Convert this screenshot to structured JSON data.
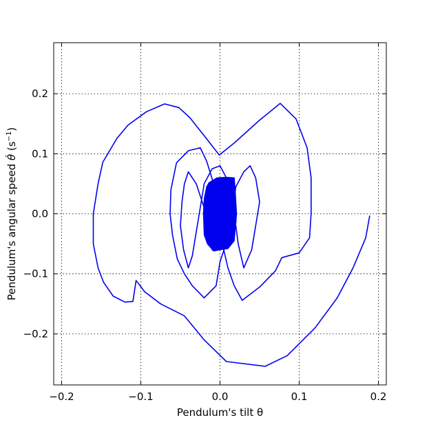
{
  "chart_data": {
    "type": "line",
    "title": "",
    "xlabel": "Pendulum's tilt θ",
    "ylabel_prefix": "Pendulum's angular speed ",
    "ylabel_symbol": "θ̇",
    "ylabel_unit_open": " (s",
    "ylabel_unit_exp": "−1",
    "ylabel_unit_close": ")",
    "xlim": [
      -0.21,
      0.21
    ],
    "ylim": [
      -0.285,
      0.285
    ],
    "grid": true,
    "line_color": "#0000ee",
    "x_ticks": [
      {
        "value": -0.2,
        "label": "−0.2"
      },
      {
        "value": -0.1,
        "label": "−0.1"
      },
      {
        "value": 0.0,
        "label": "0.0"
      },
      {
        "value": 0.1,
        "label": "0.1"
      },
      {
        "value": 0.2,
        "label": "0.2"
      }
    ],
    "y_ticks": [
      {
        "value": 0.2,
        "label": "0.2"
      },
      {
        "value": 0.1,
        "label": "0.1"
      },
      {
        "value": 0.0,
        "label": "0.0"
      },
      {
        "value": -0.1,
        "label": "−0.1"
      },
      {
        "value": -0.2,
        "label": "−0.2"
      }
    ],
    "series": [
      {
        "points": [
          [
            0.189,
            -0.003
          ],
          [
            0.184,
            -0.04
          ],
          [
            0.168,
            -0.09
          ],
          [
            0.148,
            -0.14
          ],
          [
            0.12,
            -0.19
          ],
          [
            0.085,
            -0.236
          ],
          [
            0.057,
            -0.254
          ],
          [
            0.008,
            -0.246
          ],
          [
            -0.02,
            -0.21
          ],
          [
            -0.045,
            -0.17
          ],
          [
            -0.075,
            -0.15
          ],
          [
            -0.095,
            -0.13
          ],
          [
            -0.106,
            -0.111
          ],
          [
            -0.11,
            -0.146
          ],
          [
            -0.12,
            -0.147
          ],
          [
            -0.135,
            -0.137
          ],
          [
            -0.147,
            -0.114
          ],
          [
            -0.154,
            -0.09
          ],
          [
            -0.16,
            -0.05
          ],
          [
            -0.16,
            -0.0
          ],
          [
            -0.154,
            0.05
          ],
          [
            -0.148,
            0.086
          ],
          [
            -0.13,
            0.126
          ],
          [
            -0.116,
            0.148
          ],
          [
            -0.093,
            0.17
          ],
          [
            -0.07,
            0.183
          ],
          [
            -0.052,
            0.177
          ],
          [
            -0.038,
            0.16
          ],
          [
            -0.017,
            0.125
          ],
          [
            -0.001,
            0.098
          ],
          [
            0.018,
            0.118
          ],
          [
            0.05,
            0.156
          ],
          [
            0.076,
            0.184
          ],
          [
            0.096,
            0.158
          ],
          [
            0.11,
            0.11
          ],
          [
            0.115,
            0.06
          ],
          [
            0.115,
            0.0
          ],
          [
            0.113,
            -0.04
          ],
          [
            0.1,
            -0.065
          ],
          [
            0.078,
            -0.073
          ],
          [
            0.07,
            -0.095
          ],
          [
            0.05,
            -0.122
          ],
          [
            0.028,
            -0.144
          ],
          [
            0.018,
            -0.12
          ],
          [
            0.01,
            -0.09
          ],
          [
            0.003,
            -0.05
          ],
          [
            -0.002,
            0.0
          ],
          [
            -0.008,
            0.05
          ],
          [
            -0.017,
            0.088
          ],
          [
            -0.025,
            0.11
          ],
          [
            -0.04,
            0.105
          ],
          [
            -0.055,
            0.085
          ],
          [
            -0.062,
            0.04
          ],
          [
            -0.063,
            0.0
          ],
          [
            -0.06,
            -0.035
          ],
          [
            -0.054,
            -0.075
          ],
          [
            -0.045,
            -0.1
          ],
          [
            -0.035,
            -0.12
          ],
          [
            -0.02,
            -0.14
          ],
          [
            -0.005,
            -0.12
          ],
          [
            0.0,
            -0.08
          ],
          [
            0.01,
            -0.04
          ],
          [
            0.015,
            0.0
          ],
          [
            0.02,
            0.045
          ],
          [
            0.03,
            0.07
          ],
          [
            0.038,
            0.08
          ],
          [
            0.045,
            0.06
          ],
          [
            0.05,
            0.02
          ],
          [
            0.045,
            -0.02
          ],
          [
            0.04,
            -0.06
          ],
          [
            0.03,
            -0.09
          ],
          [
            0.023,
            -0.05
          ],
          [
            0.02,
            -0.02
          ],
          [
            0.015,
            0.02
          ],
          [
            0.008,
            0.06
          ],
          [
            0.0,
            0.08
          ],
          [
            -0.01,
            0.075
          ],
          [
            -0.02,
            0.05
          ],
          [
            -0.025,
            0.01
          ],
          [
            -0.03,
            -0.03
          ],
          [
            -0.035,
            -0.07
          ],
          [
            -0.04,
            -0.09
          ],
          [
            -0.046,
            -0.06
          ],
          [
            -0.05,
            -0.02
          ],
          [
            -0.048,
            0.02
          ],
          [
            -0.045,
            0.05
          ],
          [
            -0.04,
            0.07
          ],
          [
            -0.03,
            0.05
          ],
          [
            -0.02,
            0.01
          ],
          [
            -0.015,
            -0.03
          ],
          [
            -0.01,
            -0.06
          ],
          [
            0.0,
            -0.05
          ],
          [
            0.01,
            -0.02
          ],
          [
            0.012,
            0.02
          ],
          [
            0.01,
            0.05
          ],
          [
            0.005,
            0.06
          ],
          [
            -0.005,
            0.04
          ],
          [
            -0.01,
            0.01
          ],
          [
            -0.012,
            -0.02
          ],
          [
            -0.008,
            -0.05
          ],
          [
            0.0,
            -0.04
          ],
          [
            0.005,
            -0.01
          ],
          [
            0.006,
            0.02
          ],
          [
            0.003,
            0.04
          ],
          [
            -0.003,
            0.03
          ],
          [
            -0.006,
            0.0
          ],
          [
            -0.005,
            -0.03
          ],
          [
            0.0,
            -0.02
          ],
          [
            0.002,
            0.0
          ]
        ]
      }
    ],
    "core_cluster": {
      "outline": [
        [
          -0.014,
          0.052
        ],
        [
          -0.004,
          0.06
        ],
        [
          0.008,
          0.061
        ],
        [
          0.018,
          0.06
        ],
        [
          0.019,
          0.045
        ],
        [
          0.021,
          0.0
        ],
        [
          0.018,
          -0.045
        ],
        [
          0.01,
          -0.058
        ],
        [
          0.0,
          -0.06
        ],
        [
          -0.008,
          -0.062
        ],
        [
          -0.016,
          -0.05
        ],
        [
          -0.02,
          -0.035
        ],
        [
          -0.021,
          0.0
        ],
        [
          -0.02,
          0.025
        ],
        [
          -0.017,
          0.045
        ]
      ],
      "amplitude_x": 0.021,
      "amplitude_y": 0.06,
      "turns": 40
    }
  }
}
